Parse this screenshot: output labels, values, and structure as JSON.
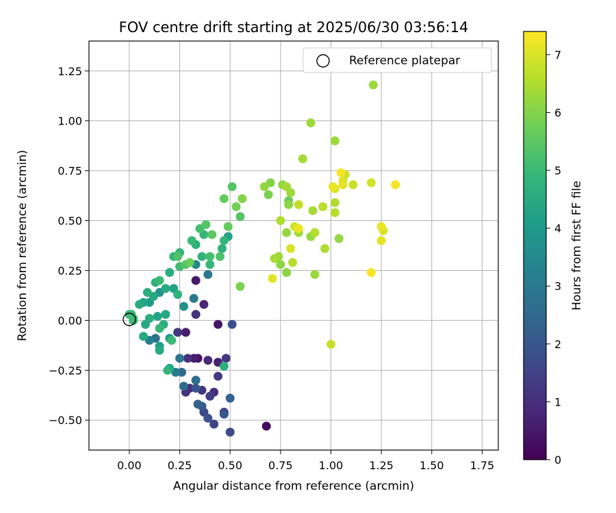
{
  "chart_data": {
    "type": "scatter",
    "title": "FOV centre drift starting at 2025/06/30 03:56:14",
    "xlabel": "Angular distance from reference (arcmin)",
    "ylabel": "Rotation from reference (arcmin)",
    "xlim": [
      -0.2,
      1.83
    ],
    "ylim": [
      -0.65,
      1.4
    ],
    "xticks": [
      "0.00",
      "0.25",
      "0.50",
      "0.75",
      "1.00",
      "1.25",
      "1.50",
      "1.75"
    ],
    "yticks": [
      "−0.50",
      "−0.25",
      "0.00",
      "0.25",
      "0.50",
      "0.75",
      "1.00",
      "1.25"
    ],
    "grid": true,
    "legend": {
      "placement": "top-right",
      "entries": [
        "Reference platepar"
      ]
    },
    "reference_point": {
      "x": 0.0,
      "y": 0.0,
      "label": "Reference platepar"
    },
    "colorbar": {
      "label": "Hours from first FF file",
      "min": 0,
      "max": 7.4,
      "ticks": [
        "0",
        "1",
        "2",
        "3",
        "4",
        "5",
        "6",
        "7"
      ],
      "colormap": "viridis",
      "colors": [
        "#440154",
        "#482878",
        "#3e4989",
        "#31688e",
        "#26828e",
        "#1f9e89",
        "#35b779",
        "#6ece58",
        "#b5de2b",
        "#fde725"
      ]
    },
    "points": [
      {
        "x": 0.02,
        "y": 0.01,
        "h": 5.1
      },
      {
        "x": 0.01,
        "y": 0.03,
        "h": 4.9
      },
      {
        "x": 0.05,
        "y": 0.08,
        "h": 4.5
      },
      {
        "x": 0.07,
        "y": 0.09,
        "h": 4.3
      },
      {
        "x": 0.09,
        "y": 0.14,
        "h": 4.6
      },
      {
        "x": 0.1,
        "y": 0.09,
        "h": 4.0
      },
      {
        "x": 0.12,
        "y": 0.12,
        "h": 4.4
      },
      {
        "x": 0.13,
        "y": 0.19,
        "h": 4.7
      },
      {
        "x": 0.15,
        "y": 0.14,
        "h": 3.8
      },
      {
        "x": 0.15,
        "y": 0.2,
        "h": 5.0
      },
      {
        "x": 0.18,
        "y": 0.16,
        "h": 4.5
      },
      {
        "x": 0.2,
        "y": 0.24,
        "h": 4.6
      },
      {
        "x": 0.22,
        "y": 0.16,
        "h": 4.2
      },
      {
        "x": 0.24,
        "y": 0.13,
        "h": 4.8
      },
      {
        "x": 0.22,
        "y": 0.32,
        "h": 4.9
      },
      {
        "x": 0.24,
        "y": 0.32,
        "h": 5.3
      },
      {
        "x": 0.25,
        "y": 0.34,
        "h": 4.9
      },
      {
        "x": 0.25,
        "y": 0.27,
        "h": 5.1
      },
      {
        "x": 0.28,
        "y": 0.28,
        "h": 5.4
      },
      {
        "x": 0.3,
        "y": 0.29,
        "h": 5.7
      },
      {
        "x": 0.31,
        "y": 0.4,
        "h": 5.0
      },
      {
        "x": 0.33,
        "y": 0.38,
        "h": 4.7
      },
      {
        "x": 0.35,
        "y": 0.46,
        "h": 5.2
      },
      {
        "x": 0.37,
        "y": 0.43,
        "h": 4.9
      },
      {
        "x": 0.38,
        "y": 0.48,
        "h": 5.4
      },
      {
        "x": 0.36,
        "y": 0.32,
        "h": 4.8
      },
      {
        "x": 0.4,
        "y": 0.32,
        "h": 5.2
      },
      {
        "x": 0.4,
        "y": 0.28,
        "h": 4.9
      },
      {
        "x": 0.41,
        "y": 0.43,
        "h": 5.5
      },
      {
        "x": 0.45,
        "y": 0.32,
        "h": 5.3
      },
      {
        "x": 0.46,
        "y": 0.36,
        "h": 4.7
      },
      {
        "x": 0.47,
        "y": 0.4,
        "h": 4.9
      },
      {
        "x": 0.49,
        "y": 0.47,
        "h": 5.6
      },
      {
        "x": 0.49,
        "y": 0.42,
        "h": 4.3
      },
      {
        "x": 0.47,
        "y": 0.61,
        "h": 5.6
      },
      {
        "x": 0.51,
        "y": 0.67,
        "h": 5.4
      },
      {
        "x": 0.53,
        "y": 0.57,
        "h": 5.8
      },
      {
        "x": 0.55,
        "y": 0.52,
        "h": 5.4
      },
      {
        "x": 0.56,
        "y": 0.61,
        "h": 6.0
      },
      {
        "x": 0.55,
        "y": 0.17,
        "h": 5.9
      },
      {
        "x": 0.33,
        "y": 0.28,
        "h": 3.5
      },
      {
        "x": 0.39,
        "y": 0.23,
        "h": 3.0
      },
      {
        "x": 0.27,
        "y": 0.07,
        "h": 3.8
      },
      {
        "x": 0.32,
        "y": 0.11,
        "h": 3.0
      },
      {
        "x": 0.33,
        "y": 0.2,
        "h": 0.5
      },
      {
        "x": 0.37,
        "y": 0.08,
        "h": 0.8
      },
      {
        "x": 0.33,
        "y": 0.03,
        "h": 1.1
      },
      {
        "x": 0.44,
        "y": -0.02,
        "h": 0.4
      },
      {
        "x": 0.51,
        "y": -0.02,
        "h": 1.8
      },
      {
        "x": 0.0,
        "y": 0.03,
        "h": 5.0
      },
      {
        "x": 0.02,
        "y": 0.0,
        "h": 4.7
      },
      {
        "x": 0.08,
        "y": -0.02,
        "h": 4.4
      },
      {
        "x": 0.1,
        "y": 0.01,
        "h": 4.6
      },
      {
        "x": 0.14,
        "y": 0.02,
        "h": 4.3
      },
      {
        "x": 0.15,
        "y": -0.04,
        "h": 4.9
      },
      {
        "x": 0.17,
        "y": -0.02,
        "h": 4.6
      },
      {
        "x": 0.18,
        "y": 0.03,
        "h": 4.4
      },
      {
        "x": 0.07,
        "y": -0.08,
        "h": 4.5
      },
      {
        "x": 0.1,
        "y": -0.1,
        "h": 3.2
      },
      {
        "x": 0.13,
        "y": -0.09,
        "h": 2.8
      },
      {
        "x": 0.15,
        "y": -0.13,
        "h": 4.1
      },
      {
        "x": 0.15,
        "y": -0.15,
        "h": 4.5
      },
      {
        "x": 0.2,
        "y": -0.09,
        "h": 4.0
      },
      {
        "x": 0.21,
        "y": -0.1,
        "h": 5.0
      },
      {
        "x": 0.24,
        "y": -0.06,
        "h": 1.2
      },
      {
        "x": 0.28,
        "y": -0.06,
        "h": 0.6
      },
      {
        "x": 0.19,
        "y": -0.25,
        "h": 4.8
      },
      {
        "x": 0.2,
        "y": -0.24,
        "h": 4.4
      },
      {
        "x": 0.23,
        "y": -0.26,
        "h": 3.1
      },
      {
        "x": 0.25,
        "y": -0.19,
        "h": 2.9
      },
      {
        "x": 0.26,
        "y": -0.26,
        "h": 2.5
      },
      {
        "x": 0.29,
        "y": -0.19,
        "h": 1.0
      },
      {
        "x": 0.32,
        "y": -0.19,
        "h": 0.6
      },
      {
        "x": 0.34,
        "y": -0.19,
        "h": 0.4
      },
      {
        "x": 0.39,
        "y": -0.2,
        "h": 0.9
      },
      {
        "x": 0.44,
        "y": -0.21,
        "h": 0.7
      },
      {
        "x": 0.48,
        "y": -0.19,
        "h": 1.2
      },
      {
        "x": 0.44,
        "y": -0.28,
        "h": 1.3
      },
      {
        "x": 0.47,
        "y": -0.23,
        "h": 4.7
      },
      {
        "x": 0.27,
        "y": -0.33,
        "h": 2.6
      },
      {
        "x": 0.28,
        "y": -0.36,
        "h": 1.1
      },
      {
        "x": 0.3,
        "y": -0.34,
        "h": 0.9
      },
      {
        "x": 0.33,
        "y": -0.34,
        "h": 2.0
      },
      {
        "x": 0.33,
        "y": -0.3,
        "h": 2.6
      },
      {
        "x": 0.34,
        "y": -0.42,
        "h": 2.3
      },
      {
        "x": 0.36,
        "y": -0.43,
        "h": 2.1
      },
      {
        "x": 0.37,
        "y": -0.46,
        "h": 1.6
      },
      {
        "x": 0.39,
        "y": -0.49,
        "h": 1.9
      },
      {
        "x": 0.4,
        "y": -0.38,
        "h": 1.4
      },
      {
        "x": 0.42,
        "y": -0.36,
        "h": 1.0
      },
      {
        "x": 0.42,
        "y": -0.52,
        "h": 1.5
      },
      {
        "x": 0.47,
        "y": -0.46,
        "h": 1.3
      },
      {
        "x": 0.47,
        "y": -0.47,
        "h": 2.0
      },
      {
        "x": 0.5,
        "y": -0.39,
        "h": 2.3
      },
      {
        "x": 0.5,
        "y": -0.56,
        "h": 1.7
      },
      {
        "x": 0.68,
        "y": -0.53,
        "h": 0.2
      },
      {
        "x": 0.36,
        "y": -0.35,
        "h": 1.2
      },
      {
        "x": 0.67,
        "y": 0.67,
        "h": 6.2
      },
      {
        "x": 0.69,
        "y": 0.63,
        "h": 5.9
      },
      {
        "x": 0.7,
        "y": 0.69,
        "h": 6.0
      },
      {
        "x": 0.72,
        "y": 0.31,
        "h": 6.4
      },
      {
        "x": 0.71,
        "y": 0.21,
        "h": 7.1
      },
      {
        "x": 0.74,
        "y": 0.32,
        "h": 6.3
      },
      {
        "x": 0.75,
        "y": 0.28,
        "h": 6.1
      },
      {
        "x": 0.75,
        "y": 0.5,
        "h": 6.5
      },
      {
        "x": 0.76,
        "y": 0.68,
        "h": 6.2
      },
      {
        "x": 0.78,
        "y": 0.67,
        "h": 6.4
      },
      {
        "x": 0.78,
        "y": 0.44,
        "h": 6.2
      },
      {
        "x": 0.79,
        "y": 0.58,
        "h": 6.1
      },
      {
        "x": 0.79,
        "y": 0.6,
        "h": 5.7
      },
      {
        "x": 0.8,
        "y": 0.64,
        "h": 6.3
      },
      {
        "x": 0.78,
        "y": 0.24,
        "h": 6.1
      },
      {
        "x": 0.8,
        "y": 0.36,
        "h": 7.0
      },
      {
        "x": 0.81,
        "y": 0.29,
        "h": 6.6
      },
      {
        "x": 0.84,
        "y": 0.44,
        "h": 6.3
      },
      {
        "x": 0.84,
        "y": 0.46,
        "h": 7.2
      },
      {
        "x": 0.82,
        "y": 0.47,
        "h": 6.9
      },
      {
        "x": 0.84,
        "y": 0.58,
        "h": 6.7
      },
      {
        "x": 0.86,
        "y": 0.81,
        "h": 6.4
      },
      {
        "x": 0.9,
        "y": 0.99,
        "h": 6.3
      },
      {
        "x": 0.91,
        "y": 0.55,
        "h": 6.4
      },
      {
        "x": 0.9,
        "y": 0.42,
        "h": 6.2
      },
      {
        "x": 0.92,
        "y": 0.44,
        "h": 6.6
      },
      {
        "x": 0.92,
        "y": 0.23,
        "h": 6.3
      },
      {
        "x": 0.96,
        "y": 0.57,
        "h": 6.6
      },
      {
        "x": 0.97,
        "y": 0.36,
        "h": 6.5
      },
      {
        "x": 1.0,
        "y": -0.12,
        "h": 6.8
      },
      {
        "x": 1.02,
        "y": 0.9,
        "h": 6.3
      },
      {
        "x": 1.02,
        "y": 0.66,
        "h": 7.0
      },
      {
        "x": 1.01,
        "y": 0.67,
        "h": 7.2
      },
      {
        "x": 1.02,
        "y": 0.54,
        "h": 6.6
      },
      {
        "x": 1.02,
        "y": 0.59,
        "h": 6.5
      },
      {
        "x": 1.04,
        "y": 0.41,
        "h": 6.2
      },
      {
        "x": 1.05,
        "y": 0.74,
        "h": 7.3
      },
      {
        "x": 1.07,
        "y": 0.73,
        "h": 6.8
      },
      {
        "x": 1.06,
        "y": 0.7,
        "h": 7.0
      },
      {
        "x": 1.06,
        "y": 0.68,
        "h": 7.1
      },
      {
        "x": 1.11,
        "y": 0.68,
        "h": 6.8
      },
      {
        "x": 1.2,
        "y": 0.69,
        "h": 6.9
      },
      {
        "x": 1.21,
        "y": 1.18,
        "h": 6.3
      },
      {
        "x": 1.2,
        "y": 0.24,
        "h": 7.3
      },
      {
        "x": 1.25,
        "y": 0.47,
        "h": 7.2
      },
      {
        "x": 1.25,
        "y": 0.4,
        "h": 7.1
      },
      {
        "x": 1.26,
        "y": 0.45,
        "h": 7.0
      },
      {
        "x": 1.32,
        "y": 0.68,
        "h": 7.3
      }
    ]
  }
}
